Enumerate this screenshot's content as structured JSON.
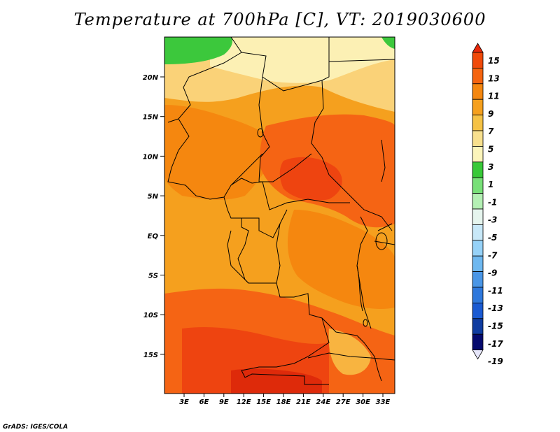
{
  "title": "Temperature at 700hPa [C], VT: 2019030600",
  "credit": "GrADS: IGES/COLA",
  "map": {
    "type": "filled-contour",
    "variable": "Temperature at 700hPa",
    "units": "C",
    "lon_range": [
      0,
      35
    ],
    "lat_range": [
      -20,
      25
    ],
    "lat_ticks": [
      "20N",
      "15N",
      "10N",
      "5N",
      "EQ",
      "5S",
      "10S",
      "15S"
    ],
    "lon_ticks": [
      "3E",
      "6E",
      "9E",
      "12E",
      "15E",
      "18E",
      "21E",
      "24E",
      "27E",
      "30E",
      "33E"
    ],
    "boundaries_color": "#000000"
  },
  "colorbar": {
    "levels": [
      "15",
      "13",
      "11",
      "9",
      "7",
      "5",
      "3",
      "1",
      "-1",
      "-3",
      "-5",
      "-7",
      "-9",
      "-11",
      "-13",
      "-15",
      "-17",
      "-19"
    ],
    "colors": [
      "#e8280a",
      "#f04a0a",
      "#f5640f",
      "#f5870f",
      "#f5a01e",
      "#f5c245",
      "#f8e08e",
      "#fcf5bb",
      "#38c938",
      "#78e078",
      "#b4f0b4",
      "#e6f5ee",
      "#c8e8f8",
      "#96d2f8",
      "#6eb8f0",
      "#4a96e6",
      "#2e78dc",
      "#1a5ad2",
      "#0f3ca0",
      "#050a6e",
      "#e6e6fa"
    ]
  },
  "fields": {
    "background": "#f5a01e",
    "ocean_west": "#f5a01e",
    "green_region": "#3cc83c",
    "light_yellow": "#fcf0b4",
    "pale_orange": "#fad278",
    "orange_dark": "#f5870f",
    "red_orange": "#f56414",
    "red": "#ee4410",
    "deep_red": "#de2a0a",
    "light_orange": "#f8b440"
  }
}
